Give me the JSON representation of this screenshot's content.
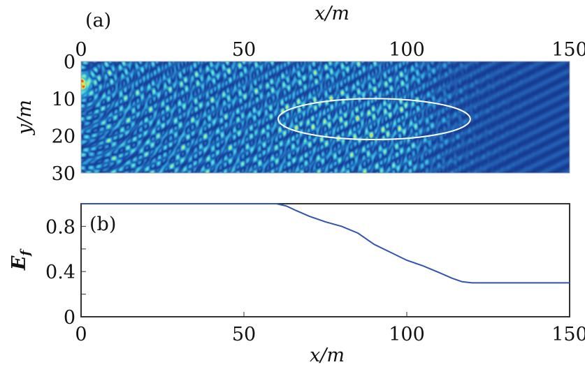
{
  "chart_data": [
    {
      "type": "heatmap",
      "panel_label": "(a)",
      "xlabel": "x/m",
      "ylabel": "y/m",
      "xlim": [
        0,
        150
      ],
      "ylim": [
        30,
        0
      ],
      "x_axis_position": "top",
      "xticks": [
        "0",
        "50",
        "100",
        "150"
      ],
      "yticks": [
        "0",
        "10",
        "20",
        "30"
      ],
      "colormap": [
        "#0b1d6b",
        "#1e4fa8",
        "#2a9fd8",
        "#5ee0d0",
        "#f3f03a",
        "#e8321c"
      ],
      "annotation": {
        "shape": "ellipse",
        "color": "#ffffff",
        "center": [
          90,
          15.5
        ],
        "radii": [
          29.5,
          5.5
        ]
      },
      "grid": false
    },
    {
      "type": "line",
      "panel_label": "(b)",
      "xlabel": "x/m",
      "ylabel": "E_f",
      "xlim": [
        0,
        150
      ],
      "ylim": [
        0,
        1
      ],
      "xticks": [
        "0",
        "50",
        "100",
        "150"
      ],
      "yticks": [
        "0",
        "0.4",
        "0.8"
      ],
      "grid": false,
      "series": [
        {
          "color": "#2f55b0",
          "x": [
            0,
            60,
            63,
            66,
            70,
            75,
            80,
            85,
            90,
            95,
            100,
            105,
            110,
            114,
            117,
            120,
            150
          ],
          "y": [
            1.0,
            1.0,
            0.98,
            0.94,
            0.89,
            0.84,
            0.8,
            0.74,
            0.64,
            0.57,
            0.5,
            0.45,
            0.39,
            0.34,
            0.31,
            0.3,
            0.3
          ]
        }
      ]
    }
  ]
}
